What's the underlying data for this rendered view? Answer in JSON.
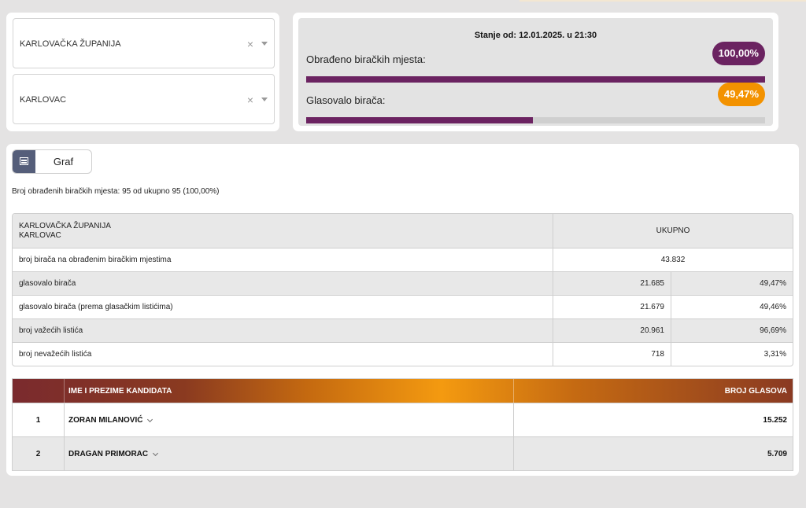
{
  "filters": {
    "county": "KARLOVAČKA ŽUPANIJA",
    "city": "KARLOVAC",
    "clear_glyph": "×",
    "clear_icon": "close-icon",
    "dropdown_icon": "chevron-down-icon"
  },
  "status": {
    "stanje": "Stanje od: 12.01.2025. u 21:30",
    "processed_label": "Obrađeno biračkih mjesta:",
    "processed_value": "100,00%",
    "processed_fraction": 1.0,
    "voted_label": "Glasovalo birača:",
    "voted_value": "49,47%",
    "voted_fraction": 0.4947,
    "colors": {
      "purple": "#6b2361",
      "orange": "#f39200",
      "track": "#cfcfcf"
    }
  },
  "main": {
    "graf_label": "Graf",
    "graf_icon": "calendar-grid-icon",
    "summary": "Broj obrađenih biračkih mjesta: 95 od ukupno 95 (100,00%)",
    "table": {
      "header_line1": "KARLOVAČKA ŽUPANIJA",
      "header_line2": "KARLOVAC",
      "header_total": "UKUPNO",
      "rows": [
        {
          "label": "broj birača na obrađenim biračkim mjestima",
          "value": "43.832",
          "pct": ""
        },
        {
          "label": "glasovalo birača",
          "value": "21.685",
          "pct": "49,47%"
        },
        {
          "label": "glasovalo birača (prema glasačkim listićima)",
          "value": "21.679",
          "pct": "49,46%"
        },
        {
          "label": "broj važećih listića",
          "value": "20.961",
          "pct": "96,69%"
        },
        {
          "label": "broj nevažećih listića",
          "value": "718",
          "pct": "3,31%"
        }
      ]
    },
    "candidates": {
      "header_name": "IME I PREZIME KANDIDATA",
      "header_votes": "BROJ GLASOVA",
      "rows": [
        {
          "num": "1",
          "name": "ZORAN MILANOVIĆ",
          "votes": "15.252"
        },
        {
          "num": "2",
          "name": "DRAGAN PRIMORAC",
          "votes": "5.709"
        }
      ]
    }
  }
}
